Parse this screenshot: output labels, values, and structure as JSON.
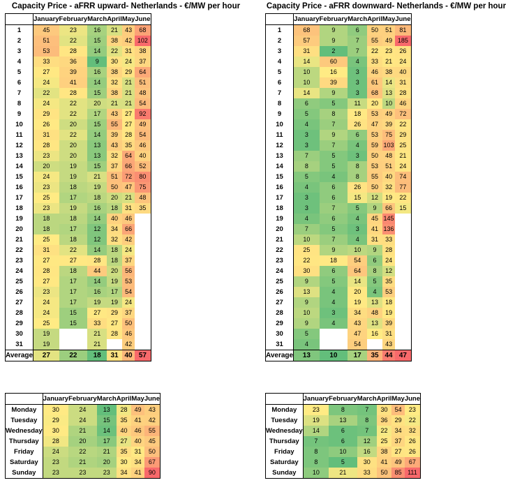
{
  "columns": [
    "January",
    "February",
    "March",
    "April",
    "May",
    "June"
  ],
  "average_label": "Average",
  "upward": {
    "title": "Capacity Price - aFRR upward- Netherlands - €/MW per hour",
    "days": [
      [
        45,
        23,
        16,
        21,
        43,
        68
      ],
      [
        51,
        22,
        15,
        38,
        42,
        102
      ],
      [
        53,
        28,
        14,
        22,
        31,
        38
      ],
      [
        33,
        36,
        9,
        30,
        24,
        37
      ],
      [
        27,
        39,
        16,
        38,
        29,
        64
      ],
      [
        24,
        41,
        14,
        32,
        21,
        51
      ],
      [
        22,
        28,
        15,
        38,
        21,
        48
      ],
      [
        24,
        22,
        20,
        21,
        21,
        54
      ],
      [
        29,
        22,
        17,
        43,
        27,
        92
      ],
      [
        26,
        20,
        15,
        55,
        27,
        49
      ],
      [
        31,
        22,
        14,
        39,
        28,
        54
      ],
      [
        28,
        20,
        13,
        43,
        35,
        46
      ],
      [
        23,
        20,
        13,
        32,
        64,
        40
      ],
      [
        20,
        19,
        15,
        37,
        66,
        52
      ],
      [
        24,
        19,
        21,
        51,
        72,
        80
      ],
      [
        23,
        18,
        19,
        50,
        47,
        75
      ],
      [
        25,
        17,
        18,
        20,
        21,
        48
      ],
      [
        23,
        19,
        16,
        18,
        31,
        35
      ],
      [
        18,
        18,
        14,
        40,
        46,
        null
      ],
      [
        18,
        17,
        12,
        34,
        66,
        null
      ],
      [
        25,
        18,
        12,
        32,
        42,
        null
      ],
      [
        31,
        22,
        14,
        18,
        24,
        null
      ],
      [
        27,
        27,
        28,
        18,
        37,
        null
      ],
      [
        28,
        18,
        44,
        20,
        56,
        null
      ],
      [
        27,
        17,
        14,
        19,
        53,
        null
      ],
      [
        23,
        17,
        16,
        17,
        54,
        null
      ],
      [
        24,
        17,
        19,
        19,
        24,
        null
      ],
      [
        24,
        15,
        27,
        29,
        37,
        null
      ],
      [
        25,
        15,
        33,
        27,
        50,
        null
      ],
      [
        19,
        null,
        21,
        28,
        46,
        null
      ],
      [
        19,
        null,
        21,
        null,
        42,
        null
      ]
    ],
    "average": [
      27,
      22,
      18,
      31,
      40,
      57
    ],
    "weekdays": [
      "Monday",
      "Tuesday",
      "Wednesday",
      "Thursday",
      "Friday",
      "Saturday",
      "Sunday"
    ],
    "weekly": [
      [
        30,
        24,
        13,
        28,
        49,
        43
      ],
      [
        29,
        24,
        15,
        35,
        41,
        42
      ],
      [
        30,
        21,
        14,
        40,
        46,
        55
      ],
      [
        28,
        20,
        17,
        27,
        40,
        45
      ],
      [
        24,
        22,
        21,
        35,
        31,
        50
      ],
      [
        23,
        21,
        20,
        30,
        34,
        67
      ],
      [
        23,
        23,
        23,
        34,
        41,
        90
      ]
    ]
  },
  "downward": {
    "title": "Capacity Price - aFRR downward- Netherlands - €/MW per hour",
    "days": [
      [
        68,
        9,
        6,
        50,
        51,
        81
      ],
      [
        57,
        9,
        7,
        55,
        49,
        185
      ],
      [
        31,
        2,
        7,
        22,
        23,
        26
      ],
      [
        14,
        60,
        4,
        33,
        21,
        24
      ],
      [
        10,
        16,
        3,
        46,
        38,
        40
      ],
      [
        10,
        39,
        3,
        61,
        14,
        31
      ],
      [
        14,
        9,
        3,
        68,
        13,
        28
      ],
      [
        6,
        5,
        11,
        20,
        10,
        46
      ],
      [
        5,
        8,
        18,
        53,
        49,
        72
      ],
      [
        4,
        7,
        26,
        47,
        39,
        22
      ],
      [
        3,
        9,
        6,
        53,
        75,
        29
      ],
      [
        3,
        7,
        4,
        59,
        103,
        25
      ],
      [
        7,
        5,
        3,
        50,
        48,
        21
      ],
      [
        8,
        5,
        8,
        53,
        51,
        24
      ],
      [
        5,
        4,
        8,
        55,
        40,
        74
      ],
      [
        4,
        6,
        26,
        50,
        32,
        77
      ],
      [
        3,
        6,
        15,
        12,
        19,
        22
      ],
      [
        3,
        7,
        5,
        9,
        66,
        15
      ],
      [
        4,
        6,
        4,
        45,
        145,
        null
      ],
      [
        7,
        5,
        3,
        41,
        136,
        null
      ],
      [
        10,
        7,
        4,
        31,
        33,
        null
      ],
      [
        25,
        9,
        10,
        9,
        28,
        null
      ],
      [
        22,
        18,
        54,
        6,
        24,
        null
      ],
      [
        30,
        6,
        64,
        8,
        12,
        null
      ],
      [
        9,
        5,
        14,
        5,
        35,
        null
      ],
      [
        13,
        4,
        20,
        4,
        53,
        null
      ],
      [
        9,
        4,
        19,
        13,
        18,
        null
      ],
      [
        10,
        3,
        34,
        48,
        19,
        null
      ],
      [
        9,
        4,
        43,
        13,
        39,
        null
      ],
      [
        5,
        null,
        47,
        16,
        31,
        null
      ],
      [
        4,
        null,
        54,
        null,
        43,
        null
      ]
    ],
    "average": [
      13,
      10,
      17,
      35,
      44,
      47
    ],
    "weekdays": [
      "Monday",
      "Tuesday",
      "Wednesday",
      "Thursday",
      "Friday",
      "Saturday",
      "Sunday"
    ],
    "weekly": [
      [
        23,
        8,
        7,
        30,
        54,
        23
      ],
      [
        19,
        13,
        8,
        36,
        29,
        22
      ],
      [
        14,
        6,
        7,
        22,
        34,
        32
      ],
      [
        7,
        6,
        12,
        25,
        37,
        26
      ],
      [
        8,
        10,
        16,
        38,
        27,
        26
      ],
      [
        8,
        5,
        30,
        41,
        49,
        67
      ],
      [
        10,
        21,
        33,
        50,
        85,
        111
      ]
    ]
  },
  "colors": {
    "low": "#63be7b",
    "mid": "#ffeb84",
    "high": "#f8696b"
  }
}
